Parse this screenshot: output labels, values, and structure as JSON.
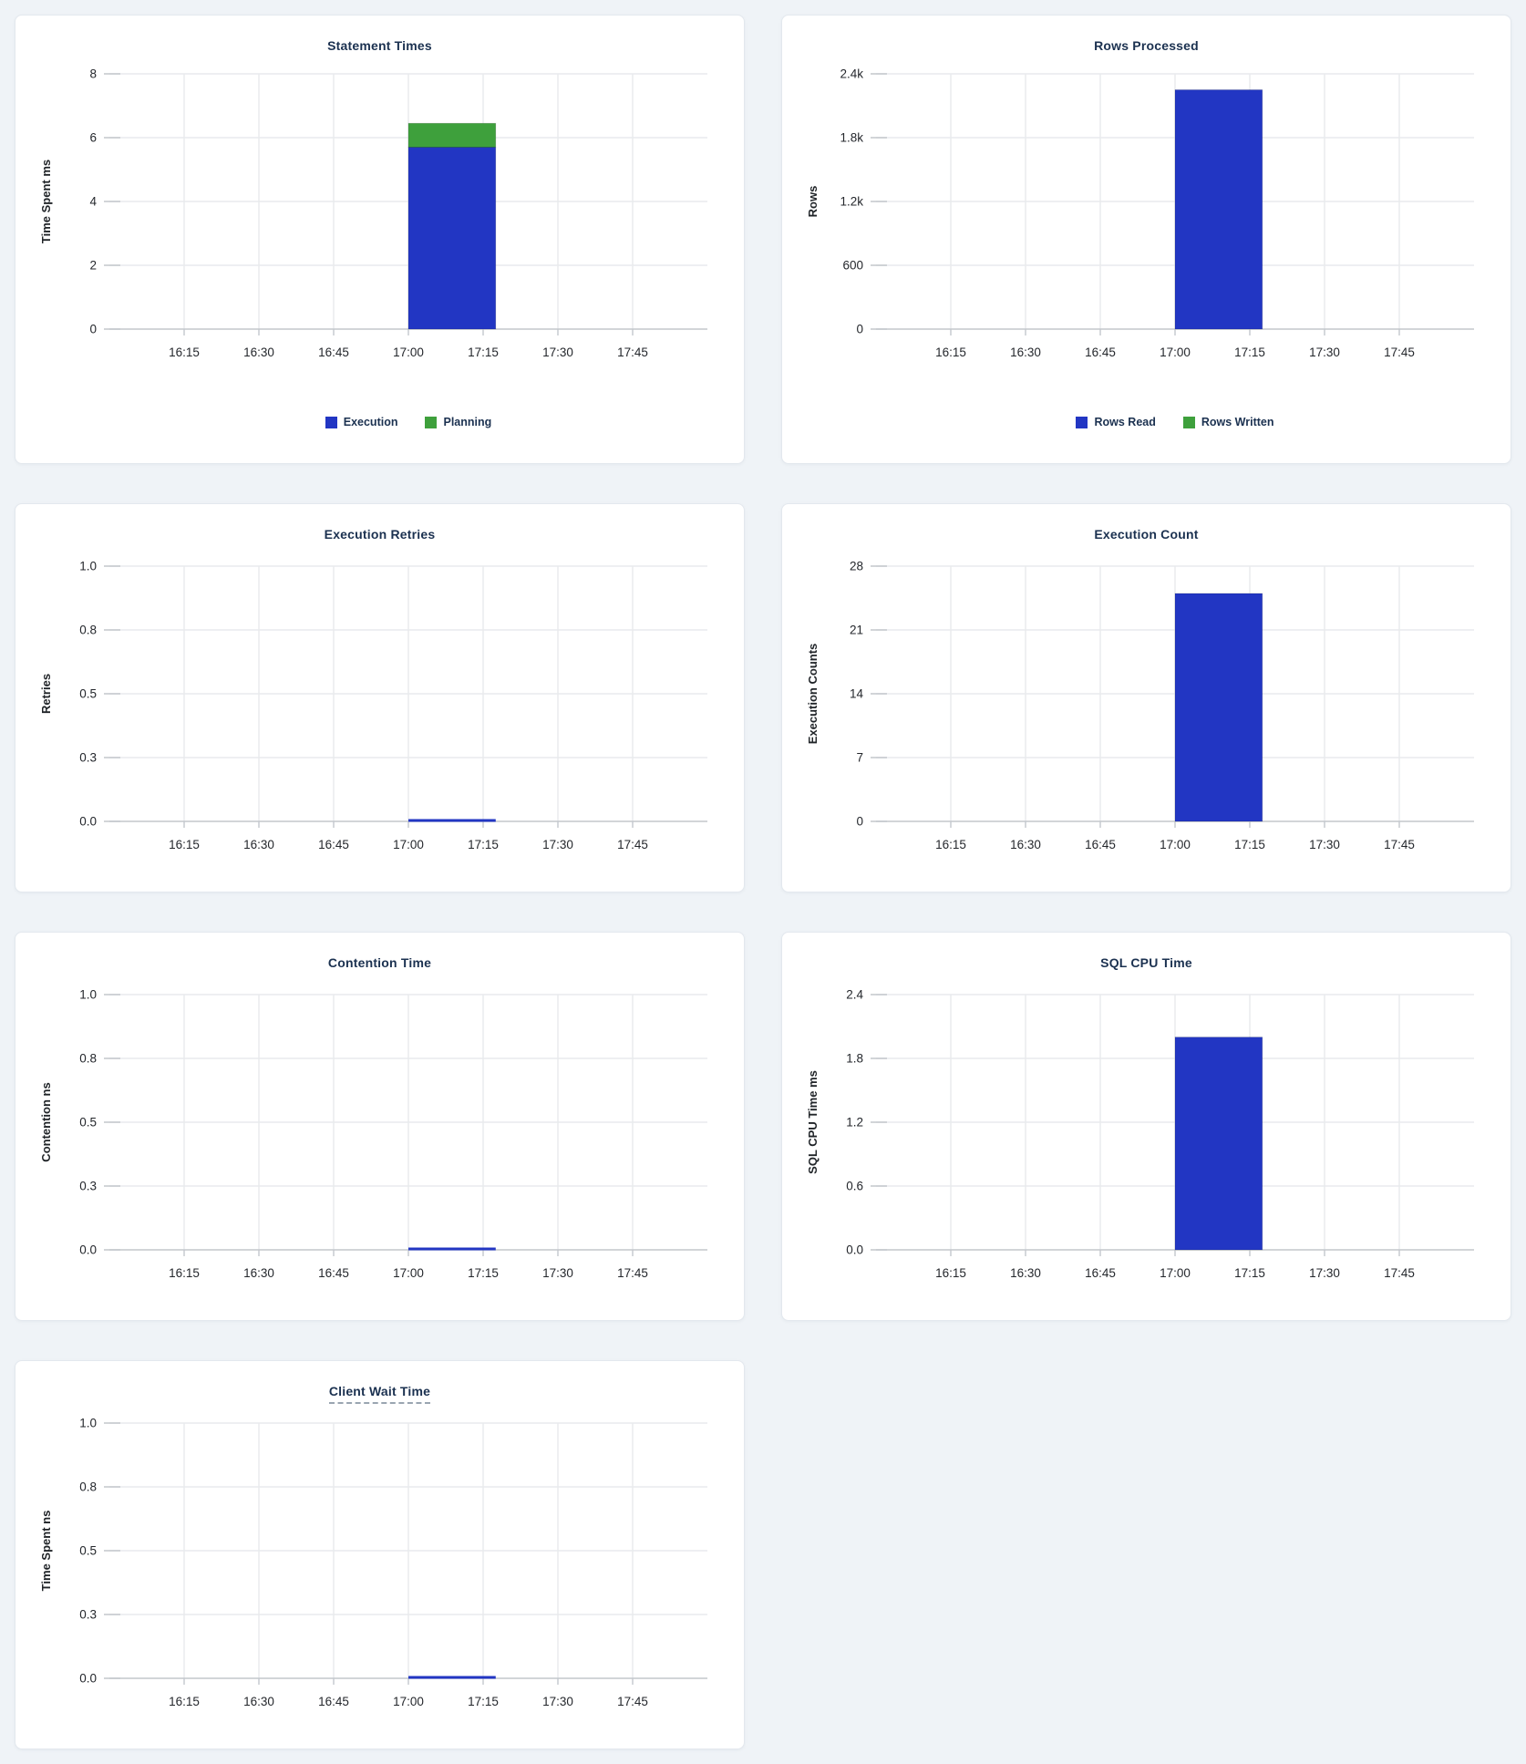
{
  "page": {
    "background": "#eff3f7",
    "card_background": "#ffffff"
  },
  "colors": {
    "blue": "#2236c3",
    "green": "#3ea03c",
    "title": "#1b3150",
    "axis_text": "#24272c",
    "gridline": "#e8eaed",
    "axis_line": "#c3c7cc"
  },
  "chart_data": [
    {
      "id": "statement-times",
      "type": "bar",
      "render": "bars",
      "title": "Statement Times",
      "tooltip_underline": false,
      "ylabel": "Time Spent ms",
      "ylim": [
        0,
        8
      ],
      "yticks": [
        "8",
        "6",
        "4",
        "2",
        "0"
      ],
      "xticks": [
        "16:15",
        "16:30",
        "16:45",
        "17:00",
        "17:15",
        "17:30",
        "17:45"
      ],
      "x_range": [
        "16:00",
        "18:00"
      ],
      "bar_window": {
        "from": "17:00",
        "to": "17:17",
        "x0": 0.5,
        "x1": 0.646
      },
      "stacked": true,
      "series": [
        {
          "name": "Execution",
          "color": "blue",
          "value": 5.7
        },
        {
          "name": "Planning",
          "color": "green",
          "value": 0.75
        }
      ],
      "legend": true
    },
    {
      "id": "rows-processed",
      "type": "bar",
      "render": "bars",
      "title": "Rows Processed",
      "tooltip_underline": false,
      "ylabel": "Rows",
      "ylim": [
        0,
        2400
      ],
      "yticks": [
        "2.4k",
        "1.8k",
        "1.2k",
        "600",
        "0"
      ],
      "xticks": [
        "16:15",
        "16:30",
        "16:45",
        "17:00",
        "17:15",
        "17:30",
        "17:45"
      ],
      "x_range": [
        "16:00",
        "18:00"
      ],
      "bar_window": {
        "from": "17:00",
        "to": "17:17",
        "x0": 0.5,
        "x1": 0.646
      },
      "stacked": true,
      "series": [
        {
          "name": "Rows Read",
          "color": "blue",
          "value": 2250
        },
        {
          "name": "Rows Written",
          "color": "green",
          "value": 0
        }
      ],
      "legend": true
    },
    {
      "id": "execution-retries",
      "type": "bar",
      "render": "flatline",
      "title": "Execution Retries",
      "tooltip_underline": false,
      "ylabel": "Retries",
      "ylim": [
        0,
        1
      ],
      "yticks": [
        "1.0",
        "0.8",
        "0.5",
        "0.3",
        "0.0"
      ],
      "xticks": [
        "16:15",
        "16:30",
        "16:45",
        "17:00",
        "17:15",
        "17:30",
        "17:45"
      ],
      "x_range": [
        "16:00",
        "18:00"
      ],
      "bar_window": {
        "from": "17:00",
        "to": "17:17",
        "x0": 0.5,
        "x1": 0.646
      },
      "stacked": false,
      "series": [
        {
          "name": "Retries",
          "color": "blue",
          "value": 0
        }
      ],
      "legend": false
    },
    {
      "id": "execution-count",
      "type": "bar",
      "render": "bars",
      "title": "Execution Count",
      "tooltip_underline": false,
      "ylabel": "Execution Counts",
      "ylim": [
        0,
        28
      ],
      "yticks": [
        "28",
        "21",
        "14",
        "7",
        "0"
      ],
      "xticks": [
        "16:15",
        "16:30",
        "16:45",
        "17:00",
        "17:15",
        "17:30",
        "17:45"
      ],
      "x_range": [
        "16:00",
        "18:00"
      ],
      "bar_window": {
        "from": "17:00",
        "to": "17:17",
        "x0": 0.5,
        "x1": 0.646
      },
      "stacked": false,
      "series": [
        {
          "name": "Execution Count",
          "color": "blue",
          "value": 25
        }
      ],
      "legend": false
    },
    {
      "id": "contention-time",
      "type": "bar",
      "render": "flatline",
      "title": "Contention Time",
      "tooltip_underline": false,
      "ylabel": "Contention ns",
      "ylim": [
        0,
        1
      ],
      "yticks": [
        "1.0",
        "0.8",
        "0.5",
        "0.3",
        "0.0"
      ],
      "xticks": [
        "16:15",
        "16:30",
        "16:45",
        "17:00",
        "17:15",
        "17:30",
        "17:45"
      ],
      "x_range": [
        "16:00",
        "18:00"
      ],
      "bar_window": {
        "from": "17:00",
        "to": "17:17",
        "x0": 0.5,
        "x1": 0.646
      },
      "stacked": false,
      "series": [
        {
          "name": "Contention",
          "color": "blue",
          "value": 0
        }
      ],
      "legend": false
    },
    {
      "id": "sql-cpu-time",
      "type": "bar",
      "render": "bars",
      "title": "SQL CPU Time",
      "tooltip_underline": false,
      "ylabel": "SQL CPU Time ms",
      "ylim": [
        0,
        2.4
      ],
      "yticks": [
        "2.4",
        "1.8",
        "1.2",
        "0.6",
        "0.0"
      ],
      "xticks": [
        "16:15",
        "16:30",
        "16:45",
        "17:00",
        "17:15",
        "17:30",
        "17:45"
      ],
      "x_range": [
        "16:00",
        "18:00"
      ],
      "bar_window": {
        "from": "17:00",
        "to": "17:17",
        "x0": 0.5,
        "x1": 0.646
      },
      "stacked": false,
      "series": [
        {
          "name": "SQL CPU Time",
          "color": "blue",
          "value": 2.0
        }
      ],
      "legend": false
    },
    {
      "id": "client-wait-time",
      "type": "bar",
      "render": "flatline",
      "title": "Client Wait Time",
      "tooltip_underline": true,
      "ylabel": "Time Spent ns",
      "ylim": [
        0,
        1
      ],
      "yticks": [
        "1.0",
        "0.8",
        "0.5",
        "0.3",
        "0.0"
      ],
      "xticks": [
        "16:15",
        "16:30",
        "16:45",
        "17:00",
        "17:15",
        "17:30",
        "17:45"
      ],
      "x_range": [
        "16:00",
        "18:00"
      ],
      "bar_window": {
        "from": "17:00",
        "to": "17:17",
        "x0": 0.5,
        "x1": 0.646
      },
      "stacked": false,
      "series": [
        {
          "name": "Client Wait Time",
          "color": "blue",
          "value": 0
        }
      ],
      "legend": false
    }
  ]
}
